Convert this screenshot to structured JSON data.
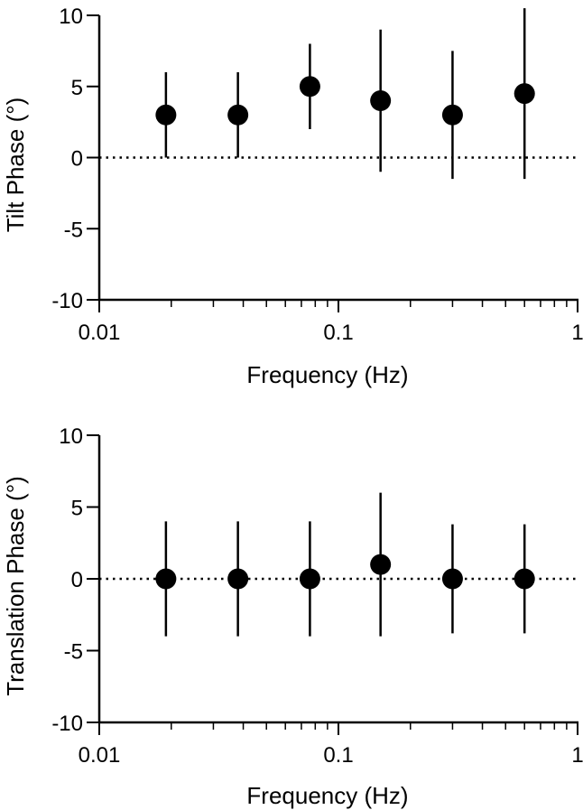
{
  "chart_data": [
    {
      "type": "scatter",
      "xscale": "log",
      "xlim": [
        0.01,
        1
      ],
      "ylim": [
        -10,
        10
      ],
      "xticks": [
        0.01,
        0.1,
        1
      ],
      "xtick_labels": [
        "0.01",
        "0.1",
        "1"
      ],
      "yticks": [
        10,
        5,
        0,
        -5,
        -10
      ],
      "ytick_labels": [
        "10",
        "5",
        "0",
        "-5",
        "-10"
      ],
      "xlabel": "Frequency (Hz)",
      "ylabel": "Tilt Phase (°)",
      "reference_line": {
        "y": 0,
        "style": "dotted"
      },
      "grid": false,
      "x": [
        0.019,
        0.038,
        0.076,
        0.15,
        0.3,
        0.6
      ],
      "y": [
        3,
        3,
        5,
        4,
        3,
        4.5
      ],
      "err_low": [
        0,
        0,
        2,
        -1,
        -1.5,
        -1.5
      ],
      "err_high": [
        6,
        6,
        8,
        9,
        7.5,
        10.5
      ]
    },
    {
      "type": "scatter",
      "xscale": "log",
      "xlim": [
        0.01,
        1
      ],
      "ylim": [
        -10,
        10
      ],
      "xticks": [
        0.01,
        0.1,
        1
      ],
      "xtick_labels": [
        "0.01",
        "0.1",
        "1"
      ],
      "yticks": [
        10,
        5,
        0,
        -5,
        -10
      ],
      "ytick_labels": [
        "10",
        "5",
        "0",
        "-5",
        "-10"
      ],
      "xlabel": "Frequency (Hz)",
      "ylabel": "Translation Phase (°)",
      "reference_line": {
        "y": 0,
        "style": "dotted"
      },
      "grid": false,
      "x": [
        0.019,
        0.038,
        0.076,
        0.15,
        0.3,
        0.6
      ],
      "y": [
        0,
        0,
        0,
        1,
        0,
        0
      ],
      "err_low": [
        -4,
        -4,
        -4,
        -4,
        -3.8,
        -3.8
      ],
      "err_high": [
        4,
        4,
        4,
        6,
        3.8,
        3.8
      ]
    }
  ]
}
